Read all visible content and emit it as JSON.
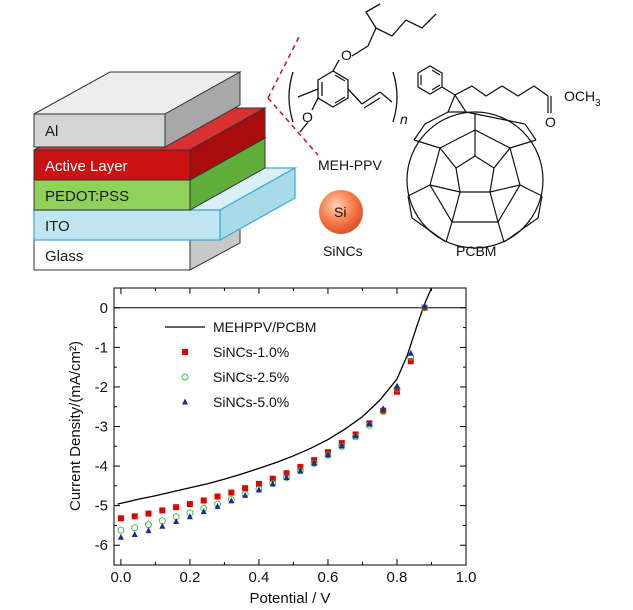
{
  "schematic": {
    "layers": [
      {
        "label": "Al",
        "color": "#cfcfcf"
      },
      {
        "label": "Active Layer",
        "color": "#cc1111"
      },
      {
        "label": "PEDOT:PSS",
        "color": "#8fd15a"
      },
      {
        "label": "ITO",
        "color": "#bfe6f0"
      },
      {
        "label": "Glass",
        "color": "#ffffff"
      }
    ],
    "molecules": {
      "mehppv": "MEH-PPV",
      "pcbm": "PCBM",
      "sincs": "SiNCs",
      "si_symbol": "Si",
      "ester_group": "OCH",
      "ester_subscript": "3",
      "oxygen_label": "O",
      "repeat_unit": "n"
    }
  },
  "chart_data": {
    "type": "scatter",
    "title": "",
    "xlabel": "Potential / V",
    "ylabel": "Current Density/(mA/cm²)",
    "xlim": [
      -0.02,
      1.0
    ],
    "ylim": [
      -6.5,
      0.5
    ],
    "xticks": [
      "0.0",
      "0.2",
      "0.4",
      "0.6",
      "0.8",
      "1.0"
    ],
    "yticks": [
      "0",
      "-1",
      "-2",
      "-3",
      "-4",
      "-5",
      "-6"
    ],
    "legend_position": "top-center",
    "zero_line": true,
    "series": [
      {
        "name": "MEHPPV/PCBM",
        "style": "line",
        "color": "#000000",
        "points": [
          [
            -0.01,
            -4.96
          ],
          [
            0.02,
            -4.9
          ],
          [
            0.05,
            -4.84
          ],
          [
            0.1,
            -4.75
          ],
          [
            0.15,
            -4.65
          ],
          [
            0.2,
            -4.55
          ],
          [
            0.25,
            -4.45
          ],
          [
            0.3,
            -4.33
          ],
          [
            0.35,
            -4.2
          ],
          [
            0.4,
            -4.06
          ],
          [
            0.45,
            -3.91
          ],
          [
            0.5,
            -3.74
          ],
          [
            0.55,
            -3.55
          ],
          [
            0.6,
            -3.33
          ],
          [
            0.65,
            -3.06
          ],
          [
            0.7,
            -2.75
          ],
          [
            0.75,
            -2.34
          ],
          [
            0.8,
            -1.8
          ],
          [
            0.83,
            -1.2
          ],
          [
            0.86,
            -0.4
          ],
          [
            0.88,
            0.1
          ],
          [
            0.9,
            0.5
          ]
        ]
      },
      {
        "name": "SiNCs-1.0%",
        "style": "square",
        "color": "#e00000",
        "points": [
          [
            0.0,
            -5.32
          ],
          [
            0.04,
            -5.27
          ],
          [
            0.08,
            -5.2
          ],
          [
            0.12,
            -5.12
          ],
          [
            0.16,
            -5.04
          ],
          [
            0.2,
            -4.96
          ],
          [
            0.24,
            -4.87
          ],
          [
            0.28,
            -4.77
          ],
          [
            0.32,
            -4.67
          ],
          [
            0.36,
            -4.56
          ],
          [
            0.4,
            -4.45
          ],
          [
            0.44,
            -4.32
          ],
          [
            0.48,
            -4.18
          ],
          [
            0.52,
            -4.02
          ],
          [
            0.56,
            -3.85
          ],
          [
            0.6,
            -3.65
          ],
          [
            0.64,
            -3.42
          ],
          [
            0.68,
            -3.2
          ],
          [
            0.72,
            -2.92
          ],
          [
            0.76,
            -2.6
          ],
          [
            0.8,
            -2.12
          ],
          [
            0.84,
            -1.35
          ],
          [
            0.88,
            0.0
          ]
        ]
      },
      {
        "name": "SiNCs-2.5%",
        "style": "circle",
        "color": "#33bb33",
        "points": [
          [
            0.0,
            -5.62
          ],
          [
            0.04,
            -5.56
          ],
          [
            0.08,
            -5.48
          ],
          [
            0.12,
            -5.38
          ],
          [
            0.16,
            -5.28
          ],
          [
            0.2,
            -5.18
          ],
          [
            0.24,
            -5.07
          ],
          [
            0.28,
            -4.96
          ],
          [
            0.32,
            -4.84
          ],
          [
            0.36,
            -4.71
          ],
          [
            0.4,
            -4.58
          ],
          [
            0.44,
            -4.44
          ],
          [
            0.48,
            -4.29
          ],
          [
            0.52,
            -4.12
          ],
          [
            0.56,
            -3.93
          ],
          [
            0.6,
            -3.72
          ],
          [
            0.64,
            -3.5
          ],
          [
            0.68,
            -3.26
          ],
          [
            0.72,
            -2.97
          ],
          [
            0.76,
            -2.62
          ],
          [
            0.8,
            -2.05
          ],
          [
            0.84,
            -1.25
          ],
          [
            0.88,
            0.0
          ]
        ]
      },
      {
        "name": "SiNCs-5.0%",
        "style": "triangle",
        "color": "#1a2a9a",
        "points": [
          [
            0.0,
            -5.8
          ],
          [
            0.04,
            -5.73
          ],
          [
            0.08,
            -5.63
          ],
          [
            0.12,
            -5.52
          ],
          [
            0.16,
            -5.4
          ],
          [
            0.2,
            -5.28
          ],
          [
            0.24,
            -5.15
          ],
          [
            0.28,
            -5.02
          ],
          [
            0.32,
            -4.88
          ],
          [
            0.36,
            -4.74
          ],
          [
            0.4,
            -4.6
          ],
          [
            0.44,
            -4.45
          ],
          [
            0.48,
            -4.29
          ],
          [
            0.52,
            -4.12
          ],
          [
            0.56,
            -3.93
          ],
          [
            0.6,
            -3.72
          ],
          [
            0.64,
            -3.49
          ],
          [
            0.68,
            -3.24
          ],
          [
            0.72,
            -2.94
          ],
          [
            0.76,
            -2.55
          ],
          [
            0.8,
            -1.98
          ],
          [
            0.84,
            -1.15
          ],
          [
            0.88,
            0.05
          ]
        ]
      }
    ]
  }
}
